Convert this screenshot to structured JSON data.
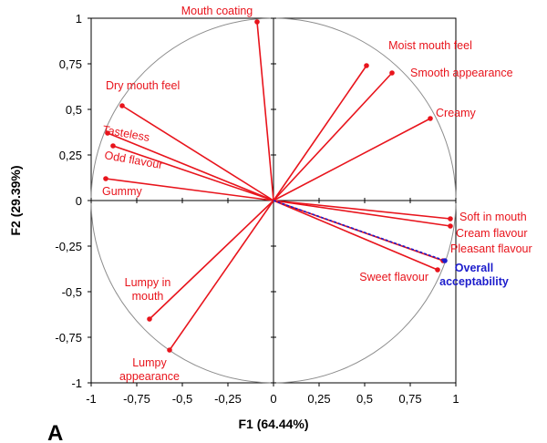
{
  "chart_data": {
    "type": "scatter",
    "subtype": "pca-correlation-circle",
    "panel_letter": "A",
    "xlabel": "F1 (64.44%)",
    "ylabel": "F2 (29.39%)",
    "xlim": [
      -1,
      1
    ],
    "ylim": [
      -1,
      1
    ],
    "x_ticks": [
      "-1",
      "-0,75",
      "-0,5",
      "-0,25",
      "0",
      "0,25",
      "0,5",
      "0,75",
      "1"
    ],
    "y_ticks": [
      "1",
      "0,75",
      "0,5",
      "0,25",
      "0",
      "-0,25",
      "-0,5",
      "-0,75",
      "-1"
    ],
    "grid": false,
    "colors": {
      "sensory": "#e8141c",
      "overall": "#1c1ccc",
      "circle": "#8c8c8c",
      "axis": "#000000"
    },
    "series": [
      {
        "name": "",
        "points": [
          {
            "label": "Mouth coating",
            "x": -0.09,
            "y": 0.98
          },
          {
            "label": "Moist mouth feel",
            "x": 0.51,
            "y": 0.74
          },
          {
            "label": "Smooth appearance",
            "x": 0.65,
            "y": 0.7
          },
          {
            "label": "Creamy",
            "x": 0.86,
            "y": 0.45
          },
          {
            "label": "Dry mouth feel",
            "x": -0.83,
            "y": 0.52
          },
          {
            "label": "Tasteless",
            "x": -0.91,
            "y": 0.37
          },
          {
            "label": "Odd flavour",
            "x": -0.88,
            "y": 0.3
          },
          {
            "label": "Gummy",
            "x": -0.92,
            "y": 0.12
          },
          {
            "label": "Soft in mouth",
            "x": 0.97,
            "y": -0.1
          },
          {
            "label": "Cream flavour",
            "x": 0.97,
            "y": -0.14
          },
          {
            "label": "Pleasant flavour",
            "x": 0.93,
            "y": -0.33
          },
          {
            "label": "Sweet flavour",
            "x": 0.9,
            "y": -0.38
          },
          {
            "label": "Lumpy in\nmouth",
            "x": -0.68,
            "y": -0.65
          },
          {
            "label": "Lumpy\nappearance",
            "x": -0.57,
            "y": -0.82
          }
        ]
      },
      {
        "name": "",
        "points": [
          {
            "label": "Overall\nacceptability",
            "x": 0.94,
            "y": -0.33
          }
        ]
      }
    ]
  }
}
